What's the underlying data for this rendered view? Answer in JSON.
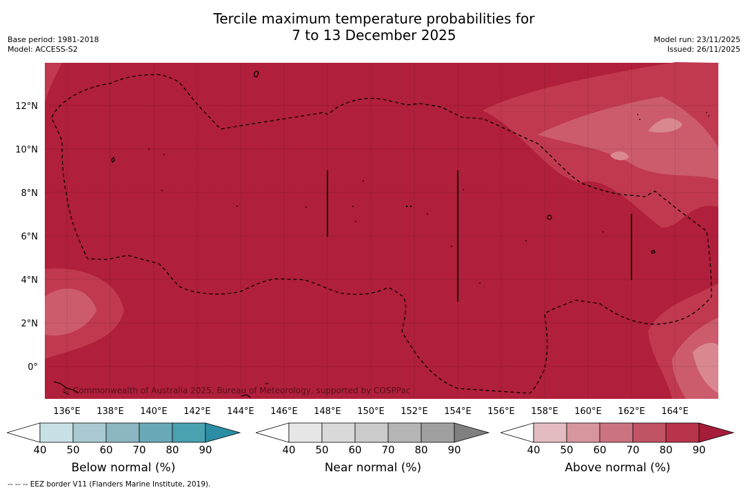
{
  "title": {
    "line1": "Tercile maximum temperature probabilities for",
    "line2": "7 to 13 December 2025"
  },
  "meta_left": {
    "base_period": "Base period: 1981-2018",
    "model": "Model: ACCESS-S2"
  },
  "meta_right": {
    "model_run": "Model run: 23/11/2025",
    "issued": "Issued: 26/11/2025"
  },
  "map": {
    "lat_labels": [
      "12°N",
      "10°N",
      "8°N",
      "6°N",
      "4°N",
      "2°N",
      "0°"
    ],
    "lon_labels": [
      "136°E",
      "138°E",
      "140°E",
      "142°E",
      "144°E",
      "146°E",
      "148°E",
      "150°E",
      "152°E",
      "154°E",
      "156°E",
      "158°E",
      "160°E",
      "162°E",
      "164°E"
    ],
    "copyright": "© Commonwealth of Australia 2025, Bureau of Meteorology, supported by COSPPac",
    "colors": {
      "ocean_fill": "#b01f3b",
      "light_60": "#c0394f",
      "light_50": "#cc5c6c",
      "light_40": "#d98891"
    }
  },
  "colorbars": [
    {
      "name": "below",
      "label": "Below normal (%)",
      "ticks": [
        "40",
        "50",
        "60",
        "70",
        "80",
        "90"
      ],
      "colors": [
        "#ffffff",
        "#c8e1e7",
        "#a9cad0",
        "#8cb6c0",
        "#6aa9b8",
        "#4aa1b0",
        "#2c8ea5"
      ]
    },
    {
      "name": "near",
      "label": "Near normal (%)",
      "ticks": [
        "40",
        "50",
        "60",
        "70",
        "80",
        "90"
      ],
      "colors": [
        "#ffffff",
        "#e6e6e6",
        "#d9d9d9",
        "#cbcbcb",
        "#b5b5b5",
        "#a0a0a0",
        "#808080"
      ]
    },
    {
      "name": "above",
      "label": "Above normal (%)",
      "ticks": [
        "40",
        "50",
        "60",
        "70",
        "80",
        "90"
      ],
      "colors": [
        "#ffffff",
        "#e3bcc1",
        "#d7959d",
        "#cb7380",
        "#c15465",
        "#b8344a",
        "#a61d39"
      ]
    }
  ],
  "footnote": "--  --  -- EEZ border V11 (Flanders Marine Institute, 2019)."
}
